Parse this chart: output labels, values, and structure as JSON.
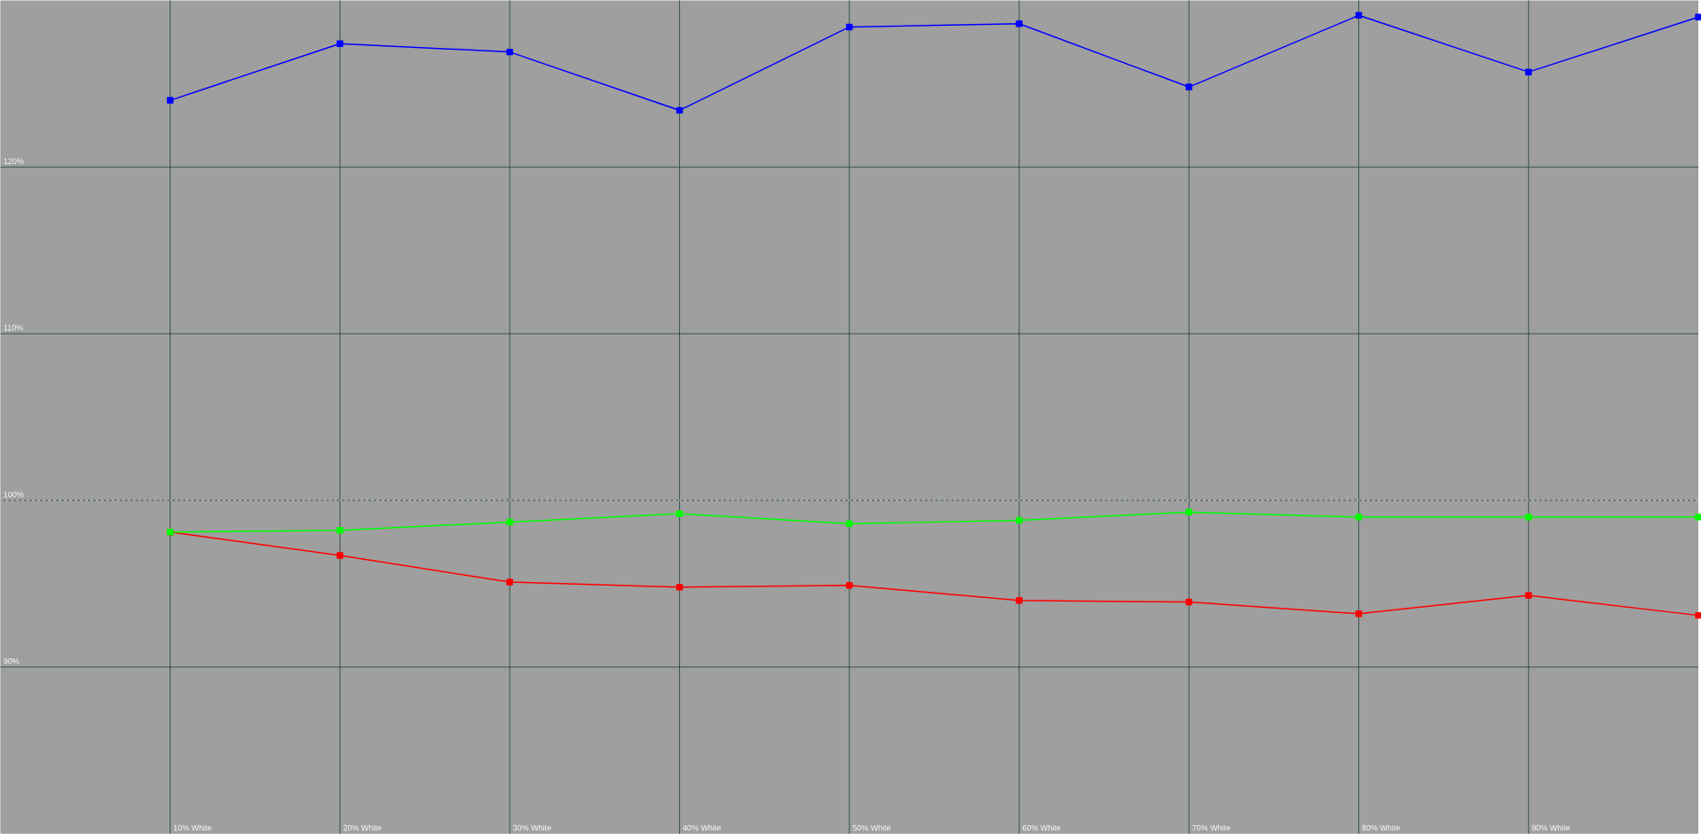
{
  "chart_data": {
    "type": "line",
    "categories": [
      null,
      "10% White",
      "20% White",
      "30% White",
      "40% White",
      "50% White",
      "60% White",
      "70% White",
      "80% White",
      "90% White",
      null
    ],
    "series": [
      {
        "color": "#0000ff",
        "values": [
          null,
          124.0,
          127.4,
          126.9,
          123.4,
          128.4,
          128.6,
          124.8,
          129.1,
          125.7,
          129.0
        ]
      },
      {
        "color": "#00ff00",
        "values": [
          null,
          98.1,
          98.2,
          98.7,
          99.2,
          98.6,
          98.8,
          99.3,
          99.0,
          99.0,
          99.0
        ]
      },
      {
        "color": "#ff0000",
        "values": [
          null,
          98.1,
          96.7,
          95.1,
          94.8,
          94.9,
          94.0,
          93.9,
          93.2,
          94.3,
          93.1
        ]
      }
    ],
    "ylim": [
      80,
      130
    ],
    "yticks": [
      {
        "value": 90,
        "label": "90%"
      },
      {
        "value": 100,
        "label": "100%"
      },
      {
        "value": 110,
        "label": "110%"
      },
      {
        "value": 120,
        "label": "120%"
      }
    ],
    "grid": true,
    "marker": "square",
    "line_style": "solid",
    "ref_lines": [
      {
        "axis": "y",
        "value": 100,
        "color": "#ffffff",
        "line_style": "dashed"
      }
    ]
  }
}
